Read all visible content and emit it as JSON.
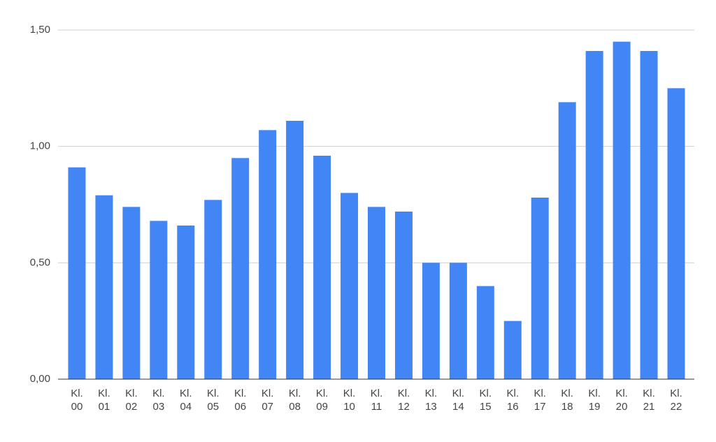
{
  "chart_data": {
    "type": "bar",
    "categories": [
      "Kl. 00",
      "Kl. 01",
      "Kl. 02",
      "Kl. 03",
      "Kl. 04",
      "Kl. 05",
      "Kl. 06",
      "Kl. 07",
      "Kl. 08",
      "Kl. 09",
      "Kl. 10",
      "Kl. 11",
      "Kl. 12",
      "Kl. 13",
      "Kl. 14",
      "Kl. 15",
      "Kl. 16",
      "Kl. 17",
      "Kl. 18",
      "Kl. 19",
      "Kl. 20",
      "Kl. 21",
      "Kl. 22"
    ],
    "values": [
      0.91,
      0.79,
      0.74,
      0.68,
      0.66,
      0.77,
      0.95,
      1.07,
      1.11,
      0.96,
      0.8,
      0.74,
      0.72,
      0.5,
      0.5,
      0.4,
      0.25,
      0.78,
      1.19,
      1.41,
      1.45,
      1.41,
      1.25
    ],
    "color": "#4285f4",
    "ylim": [
      0,
      1.5
    ],
    "yticks": [
      {
        "value": 0,
        "label": "0,00"
      },
      {
        "value": 0.5,
        "label": "0,50"
      },
      {
        "value": 1,
        "label": "1,00"
      },
      {
        "value": 1.5,
        "label": "1,50"
      }
    ],
    "grid": true
  }
}
